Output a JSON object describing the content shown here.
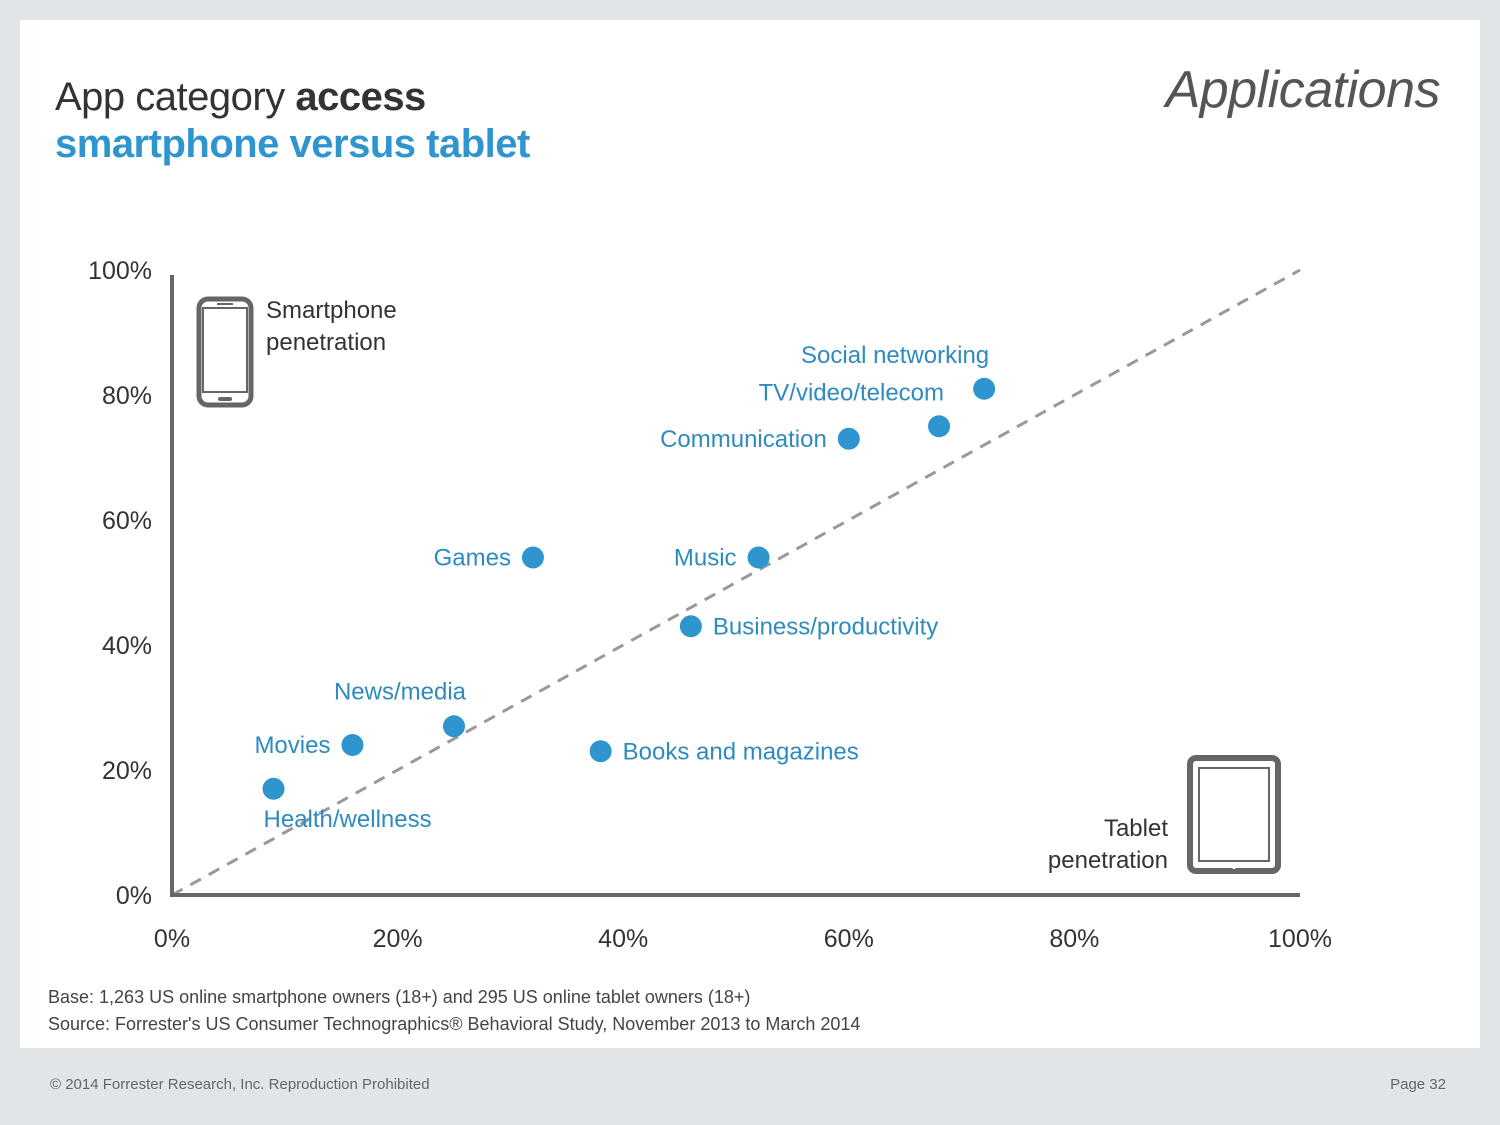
{
  "header": {
    "title_regular": "App category ",
    "title_bold": "access",
    "subtitle": "smartphone versus tablet",
    "section": "Applications"
  },
  "legend": {
    "smartphone_line1": "Smartphone",
    "smartphone_line2": "penetration",
    "tablet_line1": "Tablet",
    "tablet_line2": "penetration"
  },
  "notes": {
    "base": "Base: 1,263 US online smartphone owners (18+) and 295 US online tablet owners (18+)",
    "source": "Source: Forrester's US Consumer Technographics® Behavioral Study, November 2013 to March 2014"
  },
  "footer": {
    "copyright": "© 2014 Forrester Research, Inc. Reproduction Prohibited",
    "page": "Page 32"
  },
  "colors": {
    "point": "#2e95cf",
    "label": "#2e8bc0",
    "axis": "#666666",
    "diagonal": "#999999"
  },
  "chart_data": {
    "type": "scatter",
    "title": "App category access smartphone versus tablet",
    "xlabel": "Tablet penetration",
    "ylabel": "Smartphone penetration",
    "xlim": [
      0,
      100
    ],
    "ylim": [
      0,
      100
    ],
    "x_ticks": [
      "0%",
      "20%",
      "40%",
      "60%",
      "80%",
      "100%"
    ],
    "y_ticks": [
      "0%",
      "20%",
      "40%",
      "60%",
      "80%",
      "100%"
    ],
    "reference_line": "diagonal y = x (dashed)",
    "points": [
      {
        "label": "Social networking",
        "x": 72,
        "y": 81,
        "label_pos": "above-left"
      },
      {
        "label": "TV/video/telecom",
        "x": 68,
        "y": 75,
        "label_pos": "above-left"
      },
      {
        "label": "Communication",
        "x": 60,
        "y": 73,
        "label_pos": "left"
      },
      {
        "label": "Games",
        "x": 32,
        "y": 54,
        "label_pos": "left"
      },
      {
        "label": "Music",
        "x": 52,
        "y": 54,
        "label_pos": "left"
      },
      {
        "label": "Business/productivity",
        "x": 46,
        "y": 43,
        "label_pos": "right"
      },
      {
        "label": "News/media",
        "x": 25,
        "y": 27,
        "label_pos": "above-left"
      },
      {
        "label": "Movies",
        "x": 16,
        "y": 24,
        "label_pos": "left"
      },
      {
        "label": "Books and magazines",
        "x": 38,
        "y": 23,
        "label_pos": "right"
      },
      {
        "label": "Health/wellness",
        "x": 9,
        "y": 17,
        "label_pos": "below-right"
      }
    ]
  }
}
